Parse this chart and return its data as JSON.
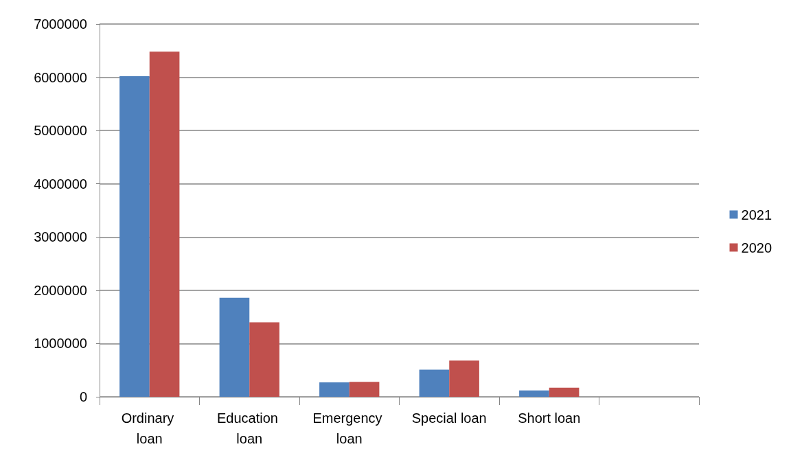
{
  "chart_data": {
    "type": "bar",
    "categories": [
      "Ordinary loan",
      "Education loan",
      "Emergency loan",
      "Special loan",
      "Short loan",
      null
    ],
    "series": [
      {
        "name": "2021",
        "color": "#4f81bd",
        "values": [
          6020000,
          1860000,
          270000,
          510000,
          120000,
          null
        ]
      },
      {
        "name": "2020",
        "color": "#c0504d",
        "values": [
          6480000,
          1400000,
          280000,
          680000,
          170000,
          null
        ]
      }
    ],
    "ylim": [
      0,
      7000000
    ],
    "yticks": [
      0,
      1000000,
      2000000,
      3000000,
      4000000,
      5000000,
      6000000,
      7000000
    ],
    "grid": "y",
    "legend": "right"
  }
}
